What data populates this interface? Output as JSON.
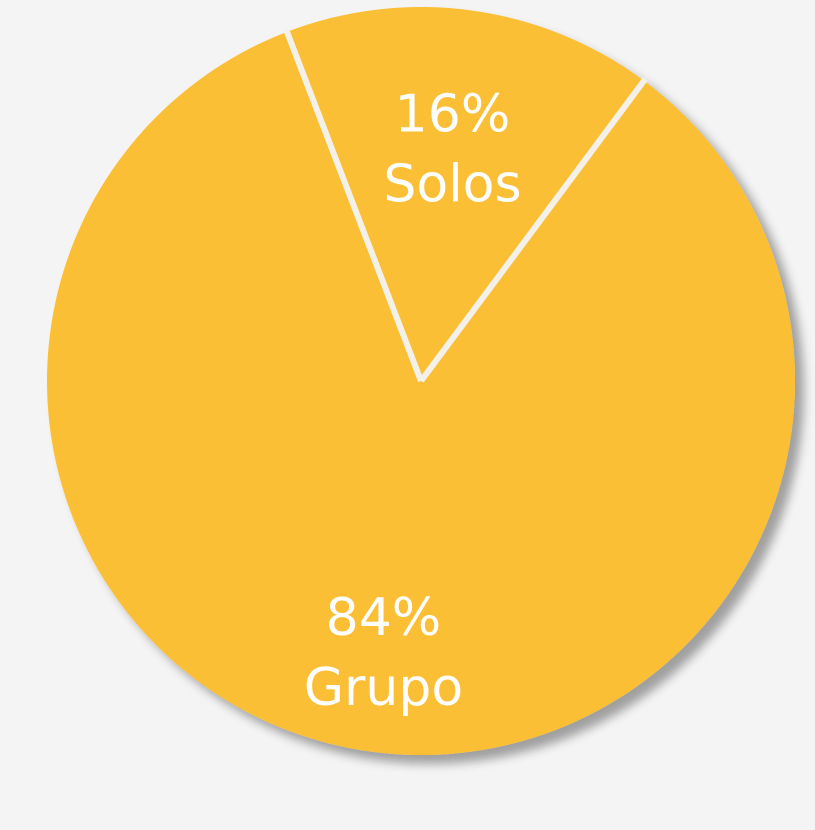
{
  "chart_data": {
    "type": "pie",
    "slices": [
      {
        "label": "Solos",
        "value": 16,
        "value_label": "16%",
        "color": "#fbbf36"
      },
      {
        "label": "Grupo",
        "value": 84,
        "value_label": "84%",
        "color": "#fbbf36"
      }
    ],
    "separator_color": "#f4f1ea",
    "background": "#f4f4f4"
  }
}
